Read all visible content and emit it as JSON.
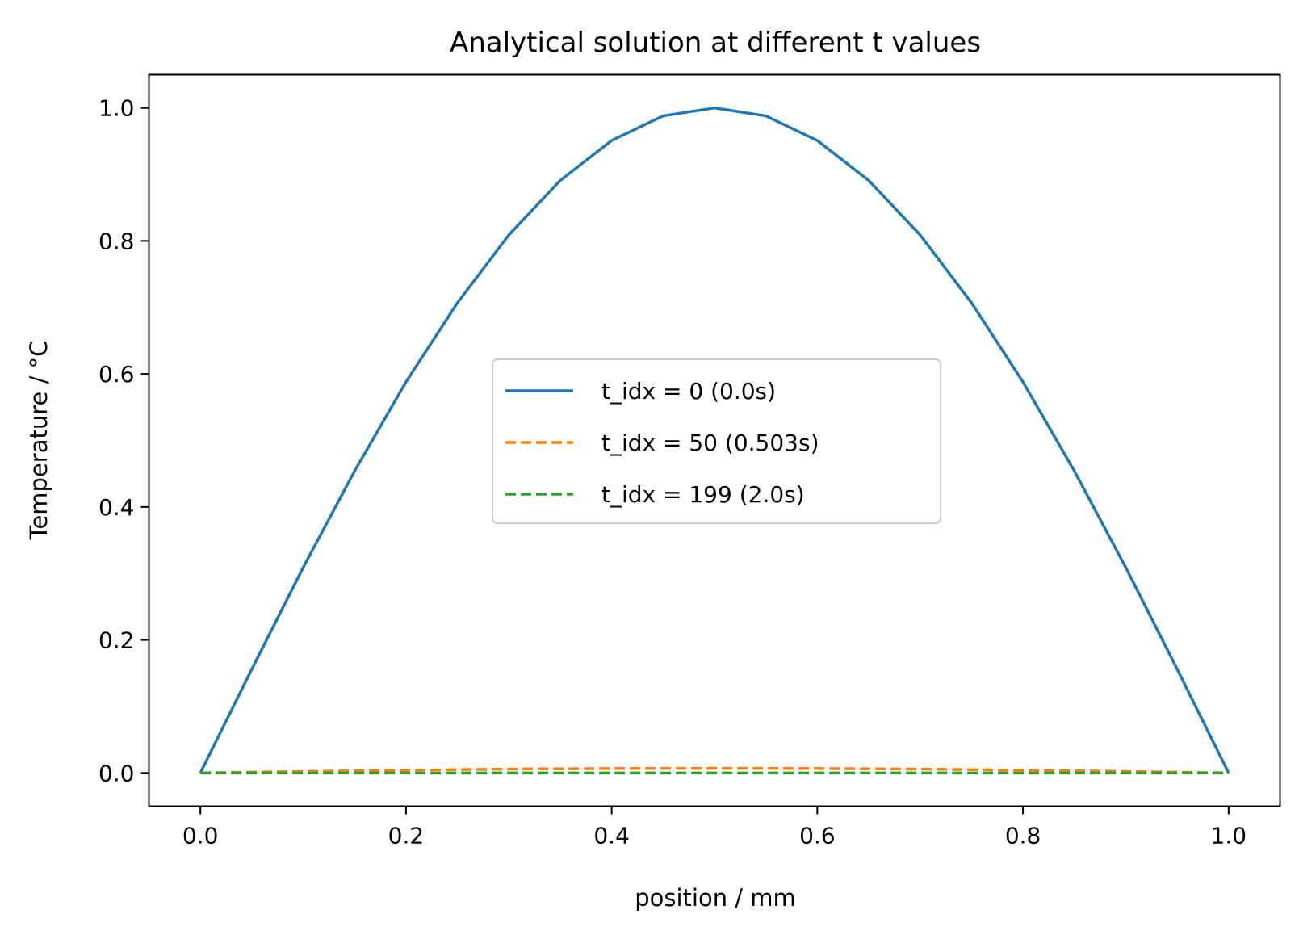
{
  "chart_data": {
    "type": "line",
    "title": "Analytical solution at different t values",
    "xlabel": "position / mm",
    "ylabel": "Temperature / °C",
    "xlim": [
      -0.05,
      1.05
    ],
    "ylim": [
      -0.05,
      1.05
    ],
    "xticks": [
      0.0,
      0.2,
      0.4,
      0.6,
      0.8,
      1.0
    ],
    "xtick_labels": [
      "0.0",
      "0.2",
      "0.4",
      "0.6",
      "0.8",
      "1.0"
    ],
    "yticks": [
      0.0,
      0.2,
      0.4,
      0.6,
      0.8,
      1.0
    ],
    "ytick_labels": [
      "0.0",
      "0.2",
      "0.4",
      "0.6",
      "0.8",
      "1.0"
    ],
    "grid": false,
    "legend_position": "center",
    "x": [
      0.0,
      0.05,
      0.1,
      0.15,
      0.2,
      0.25,
      0.3,
      0.35,
      0.4,
      0.45,
      0.5,
      0.55,
      0.6,
      0.65,
      0.7,
      0.75,
      0.8,
      0.85,
      0.9,
      0.95,
      1.0
    ],
    "series": [
      {
        "name": "t_idx = 0 (0.0s)",
        "style": "solid",
        "color": "#1f77b4",
        "values": [
          0.0,
          0.156,
          0.309,
          0.454,
          0.588,
          0.707,
          0.809,
          0.891,
          0.951,
          0.988,
          1.0,
          0.988,
          0.951,
          0.891,
          0.809,
          0.707,
          0.588,
          0.454,
          0.309,
          0.156,
          0.0
        ]
      },
      {
        "name": "t_idx = 50 (0.503s)",
        "style": "dashed",
        "color": "#ff7f0e",
        "values": [
          0.0,
          0.0011,
          0.0022,
          0.0032,
          0.0041,
          0.005,
          0.0057,
          0.0062,
          0.0067,
          0.0069,
          0.007,
          0.0069,
          0.0067,
          0.0062,
          0.0057,
          0.005,
          0.0041,
          0.0032,
          0.0022,
          0.0011,
          0.0
        ]
      },
      {
        "name": "t_idx = 199 (2.0s)",
        "style": "dashed",
        "color": "#2ca02c",
        "values": [
          0.0,
          0.0,
          0.0,
          0.0,
          0.0,
          0.0,
          0.0,
          0.0,
          0.0,
          0.0,
          0.0,
          0.0,
          0.0,
          0.0,
          0.0,
          0.0,
          0.0,
          0.0,
          0.0,
          0.0,
          0.0
        ]
      }
    ]
  }
}
